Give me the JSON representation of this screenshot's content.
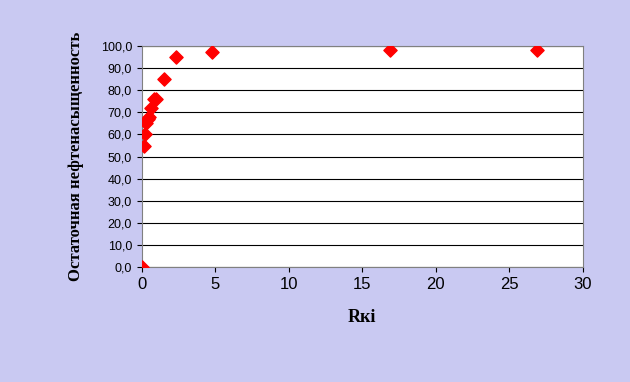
{
  "chart_data": {
    "type": "scatter",
    "x_label": "Rкi",
    "y_label": "Остаточная нефтенасыщенность",
    "x": [
      0.05,
      0.15,
      0.2,
      0.3,
      0.4,
      0.5,
      0.6,
      0.8,
      1.0,
      1.5,
      2.3,
      4.8,
      16.9,
      26.9
    ],
    "values": [
      0,
      55,
      60,
      65,
      67,
      68,
      72,
      76,
      76,
      85,
      95,
      97,
      98,
      98
    ],
    "color": "#ff0000",
    "marker": "diamond",
    "xlim": [
      0,
      30
    ],
    "xticks": [
      0,
      5,
      10,
      15,
      20,
      25,
      30
    ],
    "ylim": [
      0,
      100
    ],
    "yticks": [
      {
        "value": 0,
        "label": "0,0"
      },
      {
        "value": 10,
        "label": "10,0"
      },
      {
        "value": 20,
        "label": "20,0"
      },
      {
        "value": 30,
        "label": "30,0"
      },
      {
        "value": 40,
        "label": "40,0"
      },
      {
        "value": 50,
        "label": "50,0"
      },
      {
        "value": 60,
        "label": "60,0"
      },
      {
        "value": 70,
        "label": "70,0"
      },
      {
        "value": 80,
        "label": "80,0"
      },
      {
        "value": 90,
        "label": "90,0"
      },
      {
        "value": 100,
        "label": "100,0"
      }
    ],
    "grid": true
  }
}
